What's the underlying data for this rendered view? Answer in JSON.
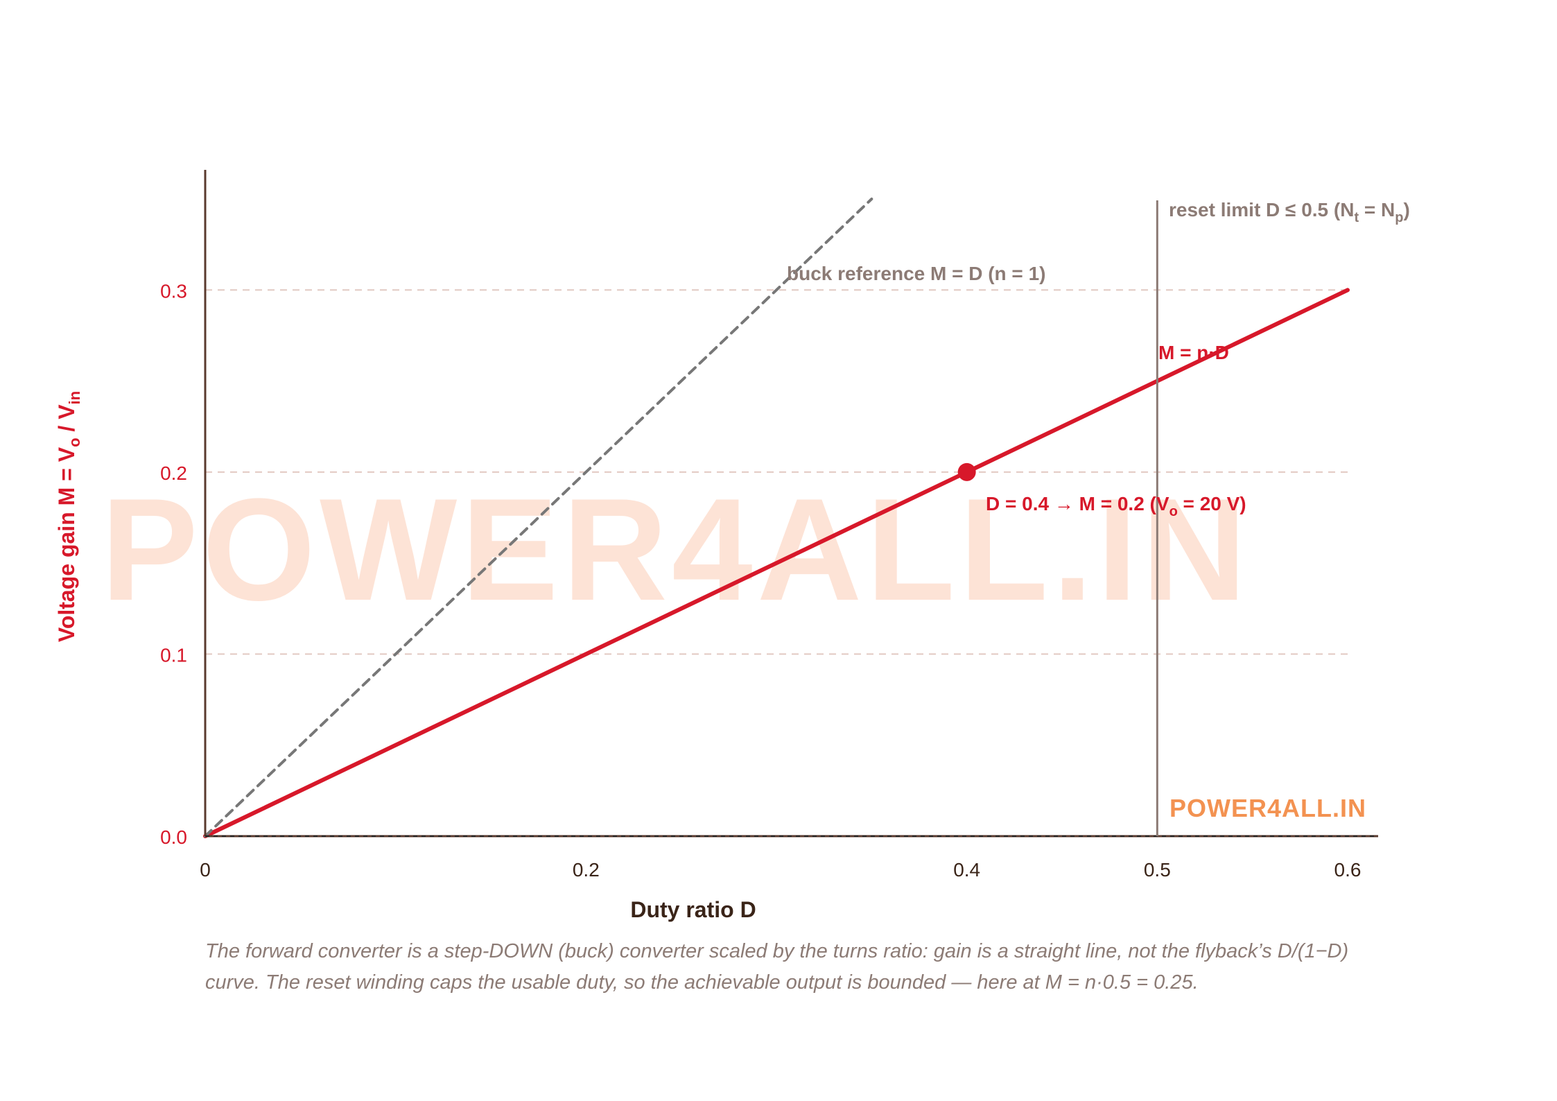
{
  "chart_data": {
    "type": "line",
    "title": "",
    "xlabel": "Duty ratio D",
    "ylabel": {
      "main": "Voltage gain M = V",
      "sub1": "o",
      "mid": " / V",
      "sub2": "in"
    },
    "xlim": [
      0,
      0.6
    ],
    "ylim": [
      0,
      0.35
    ],
    "x_ticks": [
      0,
      0.2,
      0.4,
      0.5,
      0.6
    ],
    "x_tick_labels": [
      "0",
      "0.2",
      "0.4",
      "0.5",
      "0.6"
    ],
    "y_ticks": [
      0,
      0.1,
      0.2,
      0.3
    ],
    "y_tick_labels": [
      "0.0",
      "0.1",
      "0.2",
      "0.3"
    ],
    "grid": "horizontal dashed",
    "series": [
      {
        "name": "M = n·D",
        "style": "solid",
        "color": "#d7182a",
        "x": [
          0,
          0.6
        ],
        "y": [
          0,
          0.3
        ]
      },
      {
        "name": "buck reference M = D (n = 1)",
        "style": "dashed",
        "color": "#777777",
        "x": [
          0,
          0.35
        ],
        "y": [
          0,
          0.35
        ]
      }
    ],
    "vline": {
      "x": 0.5,
      "label": {
        "main": "reset limit D ≤ 0.5 (N",
        "sub1": "t",
        "mid": " = N",
        "sub2": "p",
        "end": ")"
      }
    },
    "point": {
      "x": 0.4,
      "y": 0.2,
      "label": {
        "main": "D = 0.4 → M = 0.2 (V",
        "sub1": "o",
        "end": " = 20 V)"
      }
    },
    "annotations": {
      "series_label": "M = n·D",
      "buck_label": "buck reference M = D (n = 1)"
    },
    "colors": {
      "accent": "#d7182a",
      "axis": "#5a3a2e",
      "reference": "#777777",
      "limit": "#8c7b75",
      "watermark": "#fde3d6",
      "brand": "#f39251"
    }
  },
  "watermark": "POWER4ALL.IN",
  "brand_label": "POWER4ALL.IN",
  "caption": "The forward converter is a step-DOWN (buck) converter scaled by the turns ratio: gain is a straight line, not the flyback’s D/(1−D) curve. The reset winding caps the usable duty, so the achievable output is bounded — here at M = n·0.5 = 0.25."
}
